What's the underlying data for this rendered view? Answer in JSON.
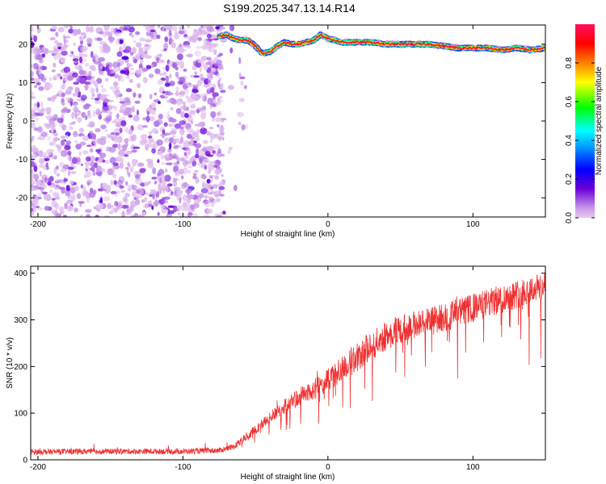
{
  "figure_title": "S199.2025.347.13.14.R14",
  "chart_data": [
    {
      "type": "heatmap",
      "xlabel": "Height of straight line (km)",
      "ylabel": "Frequency (Hz)",
      "xlim": [
        -205,
        150
      ],
      "ylim": [
        -25,
        25
      ],
      "xticks": [
        -200,
        -100,
        0,
        100
      ],
      "yticks": [
        -20,
        -10,
        0,
        10,
        20
      ],
      "xtick_labels": [
        "-200",
        "-100",
        "0",
        "100"
      ],
      "ytick_labels": [
        "-20",
        "-10",
        "0",
        "10",
        "20"
      ],
      "colorbar": {
        "label": "Normalized spectral amplitude",
        "range": [
          0,
          1
        ],
        "ticks": [
          0.0,
          0.2,
          0.4,
          0.6,
          0.8
        ],
        "tick_labels": [
          "0.0",
          "0.2",
          "0.4",
          "0.6",
          "0.8"
        ],
        "stops": [
          "#e8c8f0",
          "#6a00d8",
          "#0000ff",
          "#00ffff",
          "#00ff00",
          "#ffff00",
          "#ff8000",
          "#ff0000",
          "#ff1060"
        ]
      },
      "noise_region": {
        "x_range": [
          -205,
          -72
        ],
        "y_range": [
          -25,
          25
        ],
        "amplitude_range": [
          0.0,
          0.15
        ]
      },
      "peak_ridge": {
        "x": [
          -75,
          -70,
          -65,
          -60,
          -55,
          -50,
          -45,
          -40,
          -35,
          -30,
          -25,
          -20,
          -15,
          -10,
          -5,
          0,
          5,
          10,
          20,
          30,
          40,
          50,
          60,
          70,
          80,
          90,
          100,
          110,
          120,
          130,
          140,
          150
        ],
        "frequency_hz": [
          22,
          22.5,
          21.5,
          21,
          21,
          19.5,
          17.5,
          18,
          19.5,
          20.5,
          20,
          20,
          20.5,
          21,
          22.5,
          21.5,
          21,
          20.5,
          20.5,
          20.5,
          20,
          20,
          20,
          20,
          19.5,
          19,
          19,
          19,
          18.5,
          19,
          18.5,
          19
        ]
      }
    },
    {
      "type": "line",
      "xlabel": "Height of straight line (km)",
      "ylabel": "SNR (10 * v/v)",
      "xlim": [
        -205,
        150
      ],
      "ylim": [
        0,
        415
      ],
      "xticks": [
        -200,
        -100,
        0,
        100
      ],
      "yticks": [
        0,
        100,
        200,
        300,
        400
      ],
      "xtick_labels": [
        "-200",
        "-100",
        "0",
        "100"
      ],
      "ytick_labels": [
        "0",
        "100",
        "200",
        "300",
        "400"
      ],
      "series": [
        {
          "name": "SNR",
          "color": "#f03030",
          "x": [
            -205,
            -150,
            -100,
            -75,
            -65,
            -60,
            -50,
            -40,
            -30,
            -20,
            -10,
            0,
            10,
            20,
            30,
            40,
            50,
            60,
            80,
            100,
            120,
            140,
            150
          ],
          "trend": [
            17,
            18,
            18,
            20,
            28,
            40,
            65,
            90,
            115,
            135,
            150,
            170,
            195,
            220,
            245,
            265,
            280,
            290,
            305,
            325,
            345,
            365,
            372
          ],
          "noise_amplitude": 6
        }
      ]
    }
  ]
}
